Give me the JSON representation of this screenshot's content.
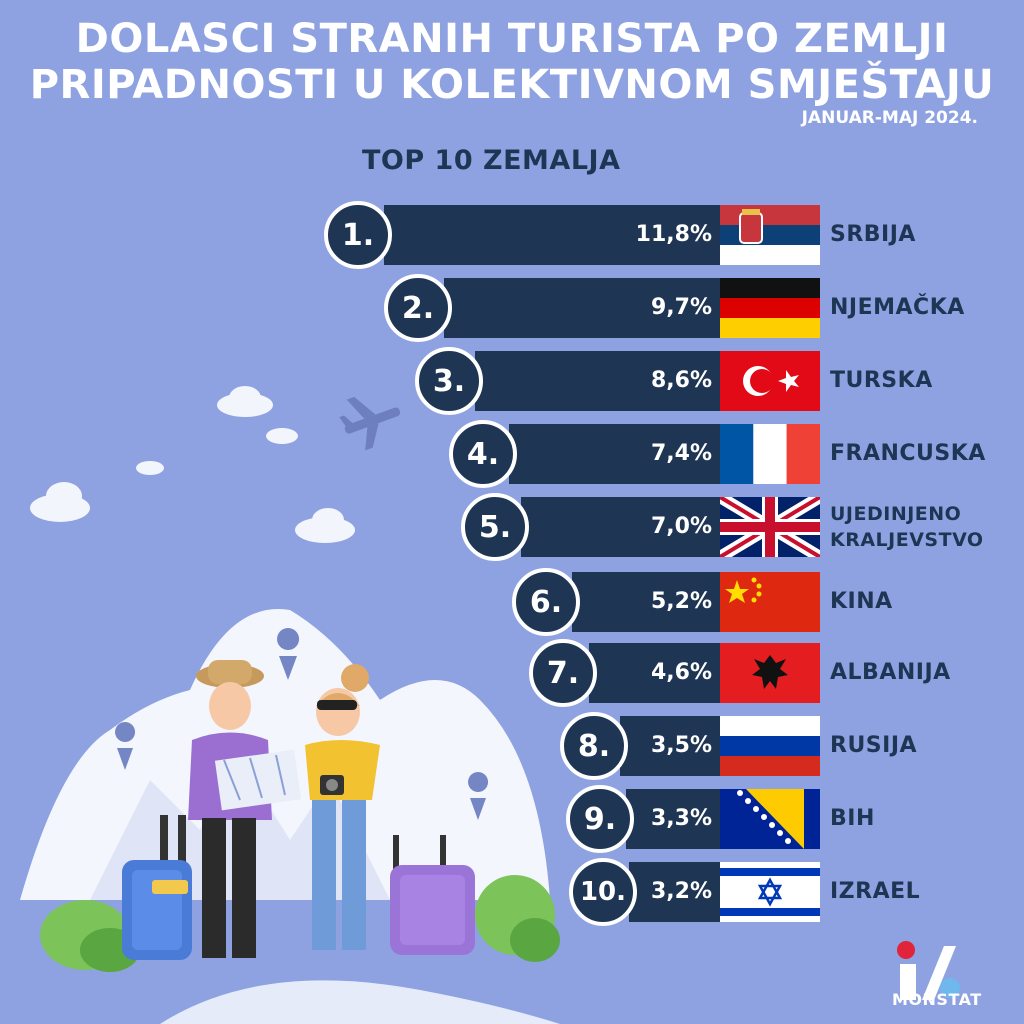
{
  "title_line1": "DOLASCI STRANIH TURISTA PO ZEMLJI",
  "title_line2": "PRIPADNOSTI U KOLEKTIVNOM SMJEŠTAJU",
  "period": "JANUAR-MAJ 2024.",
  "subtitle": "TOP 10 ZEMALJA",
  "brand": "MONSTAT",
  "colors": {
    "background": "#8ea2e2",
    "bar": "#1e3553",
    "text": "#ffffff"
  },
  "chart_data": {
    "type": "bar",
    "orientation": "horizontal",
    "ranks": [
      "1.",
      "2.",
      "3.",
      "4.",
      "5.",
      "6.",
      "7.",
      "8.",
      "9.",
      "10."
    ],
    "categories": [
      "SRBIJA",
      "NJEMAČKA",
      "TURSKA",
      "FRANCUSKA",
      "UJEDINJENO KRALJEVSTVO",
      "KINA",
      "ALBANIJA",
      "RUSIJA",
      "BIH",
      "IZRAEL"
    ],
    "category_lines": [
      [
        "SRBIJA"
      ],
      [
        "NJEMAČKA"
      ],
      [
        "TURSKA"
      ],
      [
        "FRANCUSKA"
      ],
      [
        "UJEDINJENO",
        "KRALJEVSTVO"
      ],
      [
        "KINA"
      ],
      [
        "ALBANIJA"
      ],
      [
        "RUSIJA"
      ],
      [
        "BIH"
      ],
      [
        "IZRAEL"
      ]
    ],
    "values": [
      11.8,
      9.7,
      8.6,
      7.4,
      7.0,
      5.2,
      4.6,
      3.5,
      3.3,
      3.2
    ],
    "value_labels": [
      "11,8%",
      "9,7%",
      "8,6%",
      "7,4%",
      "7,0%",
      "5,2%",
      "4,6%",
      "3,5%",
      "3,3%",
      "3,2%"
    ],
    "flags": [
      "serbia-flag",
      "germany-flag",
      "turkey-flag",
      "france-flag",
      "uk-flag",
      "china-flag",
      "albania-flag",
      "russia-flag",
      "bih-flag",
      "israel-flag"
    ]
  }
}
